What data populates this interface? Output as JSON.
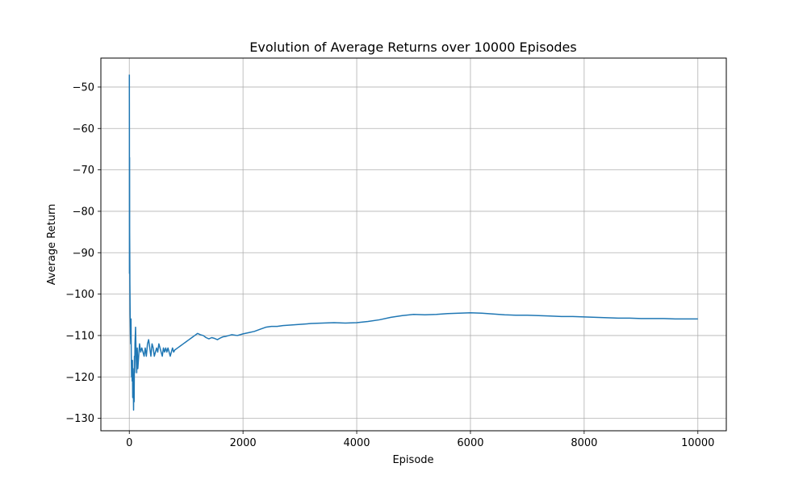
{
  "chart_data": {
    "type": "line",
    "title": "Evolution of Average Returns over 10000 Episodes",
    "xlabel": "Episode",
    "ylabel": "Average Return",
    "xlim": [
      -500,
      10500
    ],
    "ylim": [
      -133,
      -43
    ],
    "xticks": [
      0,
      2000,
      4000,
      6000,
      8000,
      10000
    ],
    "yticks": [
      -50,
      -60,
      -70,
      -80,
      -90,
      -100,
      -110,
      -120,
      -130
    ],
    "grid": true,
    "line_color": "#1f77b4",
    "series": [
      {
        "name": "",
        "x": [
          1,
          2,
          3,
          4,
          5,
          6,
          8,
          10,
          12,
          15,
          18,
          20,
          25,
          30,
          35,
          40,
          45,
          50,
          55,
          60,
          65,
          70,
          75,
          80,
          85,
          90,
          95,
          100,
          110,
          120,
          130,
          140,
          150,
          160,
          170,
          180,
          200,
          220,
          240,
          260,
          280,
          300,
          320,
          340,
          360,
          380,
          400,
          420,
          440,
          460,
          480,
          500,
          520,
          540,
          560,
          580,
          600,
          620,
          640,
          660,
          680,
          700,
          720,
          740,
          760,
          780,
          800,
          850,
          900,
          950,
          1000,
          1050,
          1100,
          1150,
          1200,
          1250,
          1300,
          1350,
          1400,
          1450,
          1500,
          1550,
          1600,
          1650,
          1700,
          1750,
          1800,
          1900,
          2000,
          2100,
          2200,
          2300,
          2400,
          2500,
          2600,
          2700,
          2800,
          2900,
          3000,
          3200,
          3400,
          3600,
          3800,
          4000,
          4200,
          4400,
          4600,
          4800,
          5000,
          5200,
          5400,
          5600,
          5800,
          6000,
          6200,
          6400,
          6600,
          6800,
          7000,
          7200,
          7400,
          7600,
          7800,
          8000,
          8200,
          8400,
          8600,
          8800,
          9000,
          9200,
          9400,
          9600,
          9800,
          10000
        ],
        "y": [
          -47,
          -60,
          -95,
          -70,
          -67,
          -85,
          -90,
          -97,
          -100,
          -105,
          -108,
          -110,
          -112,
          -106,
          -115,
          -120,
          -118,
          -121,
          -116,
          -125,
          -118,
          -122,
          -128,
          -120,
          -126,
          -115,
          -119,
          -112,
          -108,
          -115,
          -119,
          -113,
          -118,
          -116,
          -114,
          -112,
          -114,
          -113,
          -114,
          -115,
          -113,
          -115,
          -112,
          -111,
          -113,
          -115,
          -112,
          -113,
          -115,
          -114,
          -113,
          -114,
          -112,
          -113,
          -114,
          -115,
          -113,
          -114,
          -113,
          -114,
          -113,
          -114,
          -115,
          -114,
          -113,
          -114,
          -113.5,
          -113,
          -112.5,
          -112,
          -111.5,
          -111,
          -110.5,
          -110,
          -109.5,
          -109.8,
          -110,
          -110.5,
          -110.8,
          -110.5,
          -110.7,
          -111,
          -110.6,
          -110.3,
          -110.2,
          -110,
          -109.8,
          -110,
          -109.6,
          -109.3,
          -109,
          -108.5,
          -108,
          -107.8,
          -107.8,
          -107.6,
          -107.5,
          -107.4,
          -107.3,
          -107.1,
          -107,
          -106.9,
          -107,
          -106.9,
          -106.6,
          -106.2,
          -105.6,
          -105.2,
          -104.9,
          -105,
          -104.9,
          -104.7,
          -104.6,
          -104.5,
          -104.6,
          -104.8,
          -105,
          -105.1,
          -105.1,
          -105.2,
          -105.3,
          -105.4,
          -105.4,
          -105.5,
          -105.6,
          -105.7,
          -105.8,
          -105.8,
          -105.9,
          -105.9,
          -105.9,
          -106,
          -106,
          -106
        ]
      }
    ]
  }
}
